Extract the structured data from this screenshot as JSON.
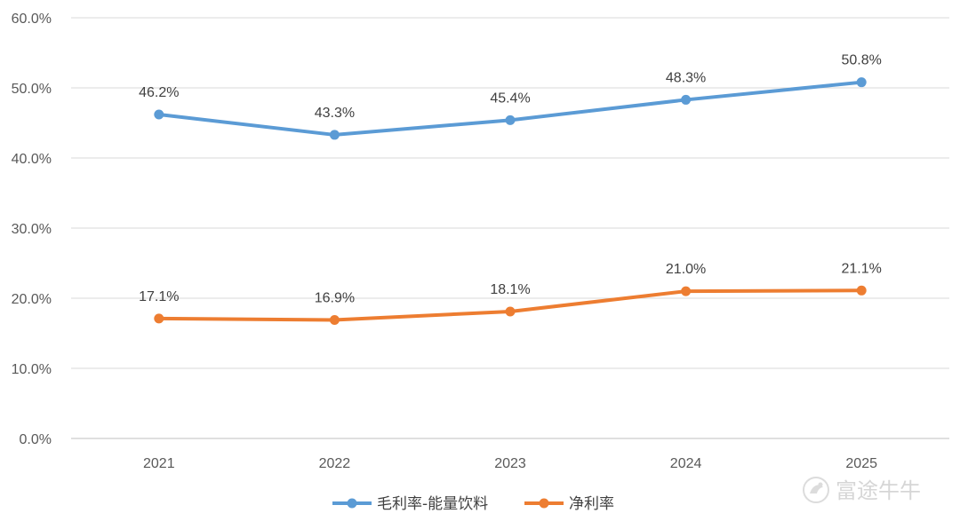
{
  "chart_data": {
    "type": "line",
    "title": "",
    "xlabel": "",
    "ylabel": "",
    "categories": [
      "2021",
      "2022",
      "2023",
      "2024",
      "2025"
    ],
    "ylim": [
      0,
      60
    ],
    "yticks": [
      0,
      10,
      20,
      30,
      40,
      50,
      60
    ],
    "ytick_labels": [
      "0.0%",
      "10.0%",
      "20.0%",
      "30.0%",
      "40.0%",
      "50.0%",
      "60.0%"
    ],
    "grid": true,
    "legend_position": "bottom-center",
    "series": [
      {
        "name": "毛利率-能量饮料",
        "color": "#5b9bd5",
        "values": [
          46.2,
          43.3,
          45.4,
          48.3,
          50.8
        ],
        "labels": [
          "46.2%",
          "43.3%",
          "45.4%",
          "48.3%",
          "50.8%"
        ]
      },
      {
        "name": "净利率",
        "color": "#ed7d31",
        "values": [
          17.1,
          16.9,
          18.1,
          21.0,
          21.1
        ],
        "labels": [
          "17.1%",
          "16.9%",
          "18.1%",
          "21.0%",
          "21.1%"
        ]
      }
    ]
  },
  "watermark": {
    "text": "富途牛牛",
    "icon": "futu-logo-icon"
  }
}
